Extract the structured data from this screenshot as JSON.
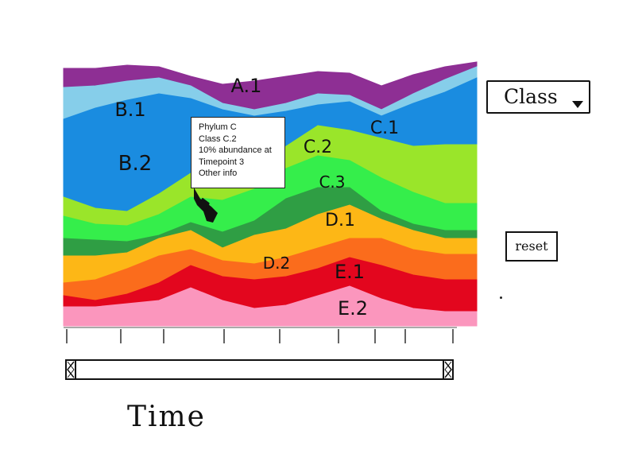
{
  "chart": {
    "type": "area",
    "layers": [
      {
        "label": "A.1",
        "color": "#8e2f94"
      },
      {
        "label": "B.1",
        "color": "#86ceea"
      },
      {
        "label": "B.2",
        "color": "#1a8ce0"
      },
      {
        "label": "C.1",
        "color": "#9ae52a"
      },
      {
        "label": "C.2",
        "color": "#35ee4b"
      },
      {
        "label": "C.3",
        "color": "#2f9e44"
      },
      {
        "label": "D.1",
        "color": "#fdb716"
      },
      {
        "label": "D.2",
        "color": "#fb6c1c"
      },
      {
        "label": "E.1",
        "color": "#e3061e"
      },
      {
        "label": "E.2",
        "color": "#fb96bd"
      }
    ]
  },
  "tooltip": {
    "line1": "Phylum C",
    "line2": "Class C.2",
    "line3": "10% abundance at",
    "line4": "Timepoint 3",
    "line5": "Other info"
  },
  "controls": {
    "class_label": "Class",
    "reset_label": "reset"
  },
  "axis": {
    "xlabel": "Time"
  },
  "icons": {
    "cursor": "hand-pointer-icon",
    "dropdown": "caret-down-icon",
    "scroll_left": "scroll-handle-left-icon",
    "scroll_right": "scroll-handle-right-icon"
  }
}
